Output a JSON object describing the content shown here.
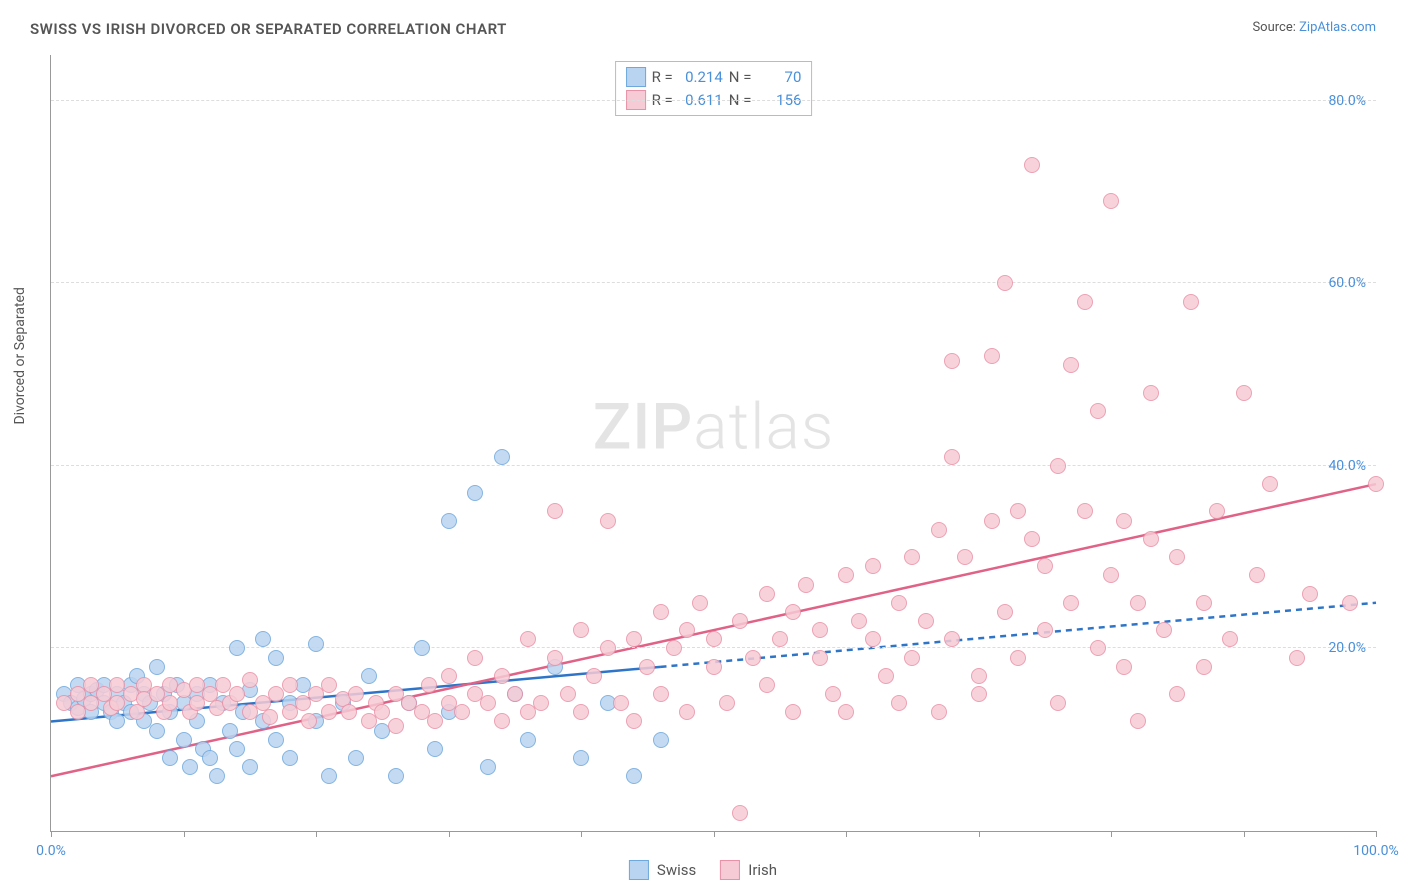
{
  "title": "SWISS VS IRISH DIVORCED OR SEPARATED CORRELATION CHART",
  "source_label": "Source:",
  "source_name": "ZipAtlas.com",
  "ylabel": "Divorced or Separated",
  "watermark": {
    "bold": "ZIP",
    "rest": "atlas"
  },
  "chart": {
    "type": "scatter",
    "xlim": [
      0,
      100
    ],
    "ylim": [
      0,
      85
    ],
    "xtick_step": 10,
    "ytick_step": 20,
    "xtick_labels": {
      "0": "0.0%",
      "100": "100.0%"
    },
    "ytick_labels": [
      "20.0%",
      "40.0%",
      "60.0%",
      "80.0%"
    ],
    "grid_color": "#dddddd",
    "axis_color": "#999999",
    "background_color": "#ffffff",
    "marker_radius": 8,
    "marker_border_width": 1.5,
    "series": [
      {
        "name": "Swiss",
        "fill_color": "#b9d4f0",
        "stroke_color": "#6fa8dc",
        "line_color": "#2e75c8",
        "line_width": 2.5,
        "trend": {
          "x1": 0,
          "y1": 12,
          "x2": 100,
          "y2": 25,
          "solid_until_x": 46
        },
        "R": "0.214",
        "N": "70",
        "points": [
          [
            1,
            15
          ],
          [
            1.5,
            14
          ],
          [
            2,
            16
          ],
          [
            2,
            13.5
          ],
          [
            2.5,
            14.5
          ],
          [
            3,
            15
          ],
          [
            3,
            13
          ],
          [
            3.5,
            15.5
          ],
          [
            4,
            14
          ],
          [
            4,
            16
          ],
          [
            4.5,
            13
          ],
          [
            5,
            15
          ],
          [
            5,
            12
          ],
          [
            5.5,
            14
          ],
          [
            6,
            16
          ],
          [
            6,
            13
          ],
          [
            6.5,
            17
          ],
          [
            7,
            15
          ],
          [
            7,
            12
          ],
          [
            7.5,
            14
          ],
          [
            8,
            18
          ],
          [
            8,
            11
          ],
          [
            8.5,
            15
          ],
          [
            9,
            13
          ],
          [
            9,
            8
          ],
          [
            9.5,
            16
          ],
          [
            10,
            14
          ],
          [
            10,
            10
          ],
          [
            10.5,
            7
          ],
          [
            11,
            15
          ],
          [
            11,
            12
          ],
          [
            11.5,
            9
          ],
          [
            12,
            16
          ],
          [
            12,
            8
          ],
          [
            12.5,
            6
          ],
          [
            13,
            14
          ],
          [
            13.5,
            11
          ],
          [
            14,
            9
          ],
          [
            14,
            20
          ],
          [
            14.5,
            13
          ],
          [
            15,
            7
          ],
          [
            15,
            15.5
          ],
          [
            16,
            21
          ],
          [
            16,
            12
          ],
          [
            17,
            10
          ],
          [
            17,
            19
          ],
          [
            18,
            8
          ],
          [
            18,
            14
          ],
          [
            19,
            16
          ],
          [
            20,
            20.5
          ],
          [
            20,
            12
          ],
          [
            21,
            6
          ],
          [
            22,
            14
          ],
          [
            23,
            8
          ],
          [
            24,
            17
          ],
          [
            25,
            11
          ],
          [
            26,
            6
          ],
          [
            27,
            14
          ],
          [
            28,
            20
          ],
          [
            29,
            9
          ],
          [
            30,
            34
          ],
          [
            30,
            13
          ],
          [
            32,
            37
          ],
          [
            33,
            7
          ],
          [
            34,
            41
          ],
          [
            35,
            15
          ],
          [
            36,
            10
          ],
          [
            38,
            18
          ],
          [
            40,
            8
          ],
          [
            42,
            14
          ],
          [
            44,
            6
          ],
          [
            46,
            10
          ]
        ]
      },
      {
        "name": "Irish",
        "fill_color": "#f7cbd5",
        "stroke_color": "#e991a6",
        "line_color": "#e06287",
        "line_width": 2.5,
        "trend": {
          "x1": 0,
          "y1": 6,
          "x2": 100,
          "y2": 38,
          "solid_until_x": 100
        },
        "R": "0.611",
        "N": "156",
        "points": [
          [
            1,
            14
          ],
          [
            2,
            15
          ],
          [
            2,
            13
          ],
          [
            3,
            16
          ],
          [
            3,
            14
          ],
          [
            4,
            15
          ],
          [
            4.5,
            13.5
          ],
          [
            5,
            16
          ],
          [
            5,
            14
          ],
          [
            6,
            15
          ],
          [
            6.5,
            13
          ],
          [
            7,
            16
          ],
          [
            7,
            14.5
          ],
          [
            8,
            15
          ],
          [
            8.5,
            13
          ],
          [
            9,
            16
          ],
          [
            9,
            14
          ],
          [
            10,
            15.5
          ],
          [
            10.5,
            13
          ],
          [
            11,
            16
          ],
          [
            11,
            14
          ],
          [
            12,
            15
          ],
          [
            12.5,
            13.5
          ],
          [
            13,
            16
          ],
          [
            13.5,
            14
          ],
          [
            14,
            15
          ],
          [
            15,
            13
          ],
          [
            15,
            16.5
          ],
          [
            16,
            14
          ],
          [
            16.5,
            12.5
          ],
          [
            17,
            15
          ],
          [
            18,
            13
          ],
          [
            18,
            16
          ],
          [
            19,
            14
          ],
          [
            19.5,
            12
          ],
          [
            20,
            15
          ],
          [
            21,
            13
          ],
          [
            21,
            16
          ],
          [
            22,
            14.5
          ],
          [
            22.5,
            13
          ],
          [
            23,
            15
          ],
          [
            24,
            12
          ],
          [
            24.5,
            14
          ],
          [
            25,
            13
          ],
          [
            26,
            15
          ],
          [
            26,
            11.5
          ],
          [
            27,
            14
          ],
          [
            28,
            13
          ],
          [
            28.5,
            16
          ],
          [
            29,
            12
          ],
          [
            30,
            14
          ],
          [
            30,
            17
          ],
          [
            31,
            13
          ],
          [
            32,
            15
          ],
          [
            32,
            19
          ],
          [
            33,
            14
          ],
          [
            34,
            12
          ],
          [
            34,
            17
          ],
          [
            35,
            15
          ],
          [
            36,
            13
          ],
          [
            36,
            21
          ],
          [
            37,
            14
          ],
          [
            38,
            19
          ],
          [
            38,
            35
          ],
          [
            39,
            15
          ],
          [
            40,
            13
          ],
          [
            40,
            22
          ],
          [
            41,
            17
          ],
          [
            42,
            20
          ],
          [
            42,
            34
          ],
          [
            43,
            14
          ],
          [
            44,
            21
          ],
          [
            44,
            12
          ],
          [
            45,
            18
          ],
          [
            46,
            24
          ],
          [
            46,
            15
          ],
          [
            47,
            20
          ],
          [
            48,
            13
          ],
          [
            48,
            22
          ],
          [
            49,
            25
          ],
          [
            50,
            18
          ],
          [
            50,
            21
          ],
          [
            51,
            14
          ],
          [
            52,
            23
          ],
          [
            52,
            2
          ],
          [
            53,
            19
          ],
          [
            54,
            26
          ],
          [
            54,
            16
          ],
          [
            55,
            21
          ],
          [
            56,
            13
          ],
          [
            56,
            24
          ],
          [
            57,
            27
          ],
          [
            58,
            19
          ],
          [
            58,
            22
          ],
          [
            59,
            15
          ],
          [
            60,
            28
          ],
          [
            60,
            13
          ],
          [
            61,
            23
          ],
          [
            62,
            21
          ],
          [
            62,
            29
          ],
          [
            63,
            17
          ],
          [
            64,
            14
          ],
          [
            64,
            25
          ],
          [
            65,
            30
          ],
          [
            65,
            19
          ],
          [
            66,
            23
          ],
          [
            67,
            13
          ],
          [
            67,
            33
          ],
          [
            68,
            21
          ],
          [
            68,
            41
          ],
          [
            68,
            51.5
          ],
          [
            69,
            30
          ],
          [
            70,
            17
          ],
          [
            70,
            15
          ],
          [
            71,
            52
          ],
          [
            71,
            34
          ],
          [
            72,
            24
          ],
          [
            72,
            60
          ],
          [
            73,
            19
          ],
          [
            73,
            35
          ],
          [
            74,
            32
          ],
          [
            74,
            73
          ],
          [
            75,
            22
          ],
          [
            75,
            29
          ],
          [
            76,
            40
          ],
          [
            76,
            14
          ],
          [
            77,
            51
          ],
          [
            77,
            25
          ],
          [
            78,
            35
          ],
          [
            78,
            58
          ],
          [
            79,
            20
          ],
          [
            79,
            46
          ],
          [
            80,
            28
          ],
          [
            80,
            69
          ],
          [
            81,
            34
          ],
          [
            81,
            18
          ],
          [
            82,
            25
          ],
          [
            82,
            12
          ],
          [
            83,
            32
          ],
          [
            83,
            48
          ],
          [
            84,
            22
          ],
          [
            85,
            30
          ],
          [
            85,
            15
          ],
          [
            86,
            58
          ],
          [
            87,
            25
          ],
          [
            87,
            18
          ],
          [
            88,
            35
          ],
          [
            89,
            21
          ],
          [
            90,
            48
          ],
          [
            91,
            28
          ],
          [
            92,
            38
          ],
          [
            94,
            19
          ],
          [
            95,
            26
          ],
          [
            98,
            25
          ],
          [
            100,
            38
          ]
        ]
      }
    ]
  },
  "legend_top": {
    "R_label": "R =",
    "N_label": "N ="
  },
  "legend_bottom_labels": [
    "Swiss",
    "Irish"
  ]
}
